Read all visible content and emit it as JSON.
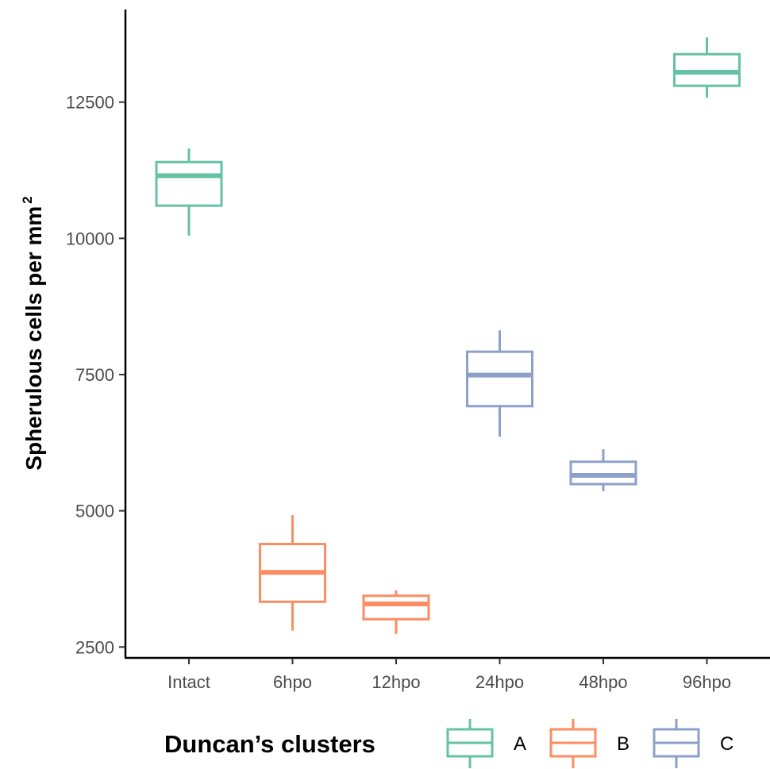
{
  "chart_data": {
    "type": "box",
    "ylabel": "Spherulous cells per mm",
    "ylabel_superscript": "2",
    "xlabel": "",
    "ylim": [
      2300,
      14200
    ],
    "yticks": [
      2500,
      5000,
      7500,
      10000,
      12500
    ],
    "categories": [
      "Intact",
      "6hpo",
      "12hpo",
      "24hpo",
      "48hpo",
      "96hpo"
    ],
    "boxes": [
      {
        "category": "Intact",
        "cluster": "A",
        "min": 10050,
        "q1": 10600,
        "median": 11150,
        "q3": 11400,
        "max": 11650
      },
      {
        "category": "6hpo",
        "cluster": "B",
        "min": 2800,
        "q1": 3330,
        "median": 3870,
        "q3": 4390,
        "max": 4920
      },
      {
        "category": "12hpo",
        "cluster": "B",
        "min": 2740,
        "q1": 3010,
        "median": 3290,
        "q3": 3440,
        "max": 3540
      },
      {
        "category": "24hpo",
        "cluster": "C",
        "min": 6360,
        "q1": 6920,
        "median": 7490,
        "q3": 7920,
        "max": 8310
      },
      {
        "category": "48hpo",
        "cluster": "C",
        "min": 5360,
        "q1": 5490,
        "median": 5650,
        "q3": 5900,
        "max": 6130
      },
      {
        "category": "96hpo",
        "cluster": "A",
        "min": 12580,
        "q1": 12800,
        "median": 13050,
        "q3": 13380,
        "max": 13690
      }
    ],
    "legend": {
      "title": "Duncan’s clusters",
      "position": "bottom",
      "entries": [
        {
          "key": "A",
          "label": "A",
          "color": "#66c2a5"
        },
        {
          "key": "B",
          "label": "B",
          "color": "#fc8d62"
        },
        {
          "key": "C",
          "label": "C",
          "color": "#8da0cb"
        }
      ]
    },
    "grid": false
  }
}
